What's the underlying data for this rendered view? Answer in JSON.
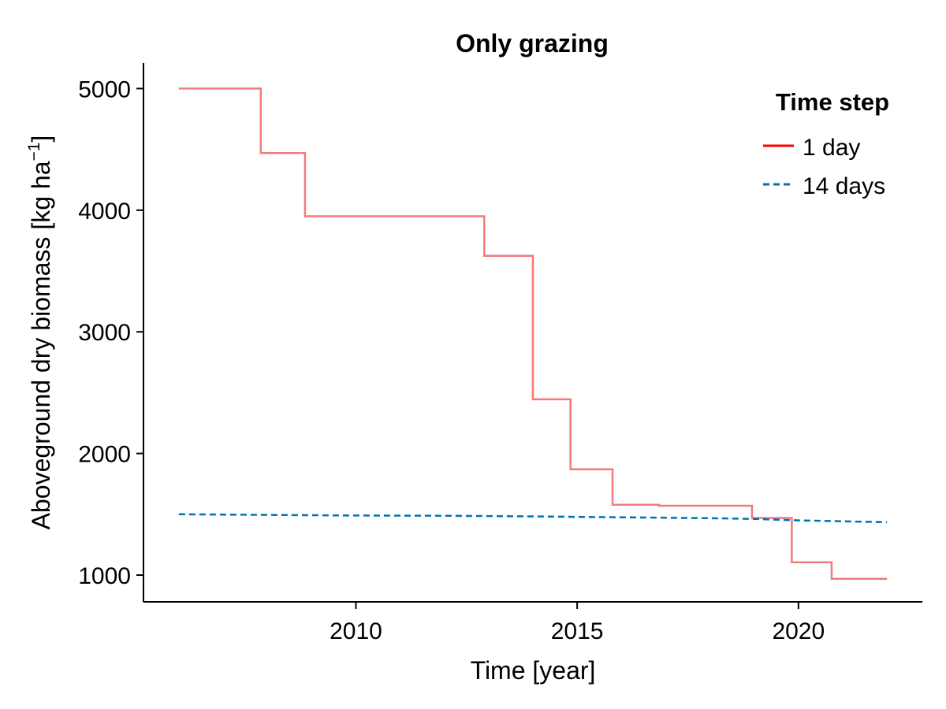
{
  "chart_data": {
    "type": "line",
    "title": "Only grazing",
    "xlabel": "Time [year]",
    "ylabel_main": "Aboveground dry biomass [kg ha",
    "ylabel_sup": "−1",
    "ylabel_end": "]",
    "xlim": [
      2005.2,
      2022.8
    ],
    "ylim": [
      780,
      5210
    ],
    "x_ticks": [
      2010,
      2015,
      2020
    ],
    "x_tick_labels": [
      "2010",
      "2015",
      "2020"
    ],
    "y_ticks": [
      1000,
      2000,
      3000,
      4000,
      5000
    ],
    "y_tick_labels": [
      "1000",
      "2000",
      "3000",
      "4000",
      "5000"
    ],
    "grid": false,
    "legend": {
      "title": "Time step",
      "placement": "top-right",
      "entries": [
        "1 day",
        "14 days"
      ]
    },
    "series": [
      {
        "name": "1 day",
        "color": "#f47a7a",
        "legend_color": "#ff0000",
        "style": "solid",
        "x": [
          2006.0,
          2007.85,
          2007.85,
          2008.85,
          2008.85,
          2012.9,
          2012.9,
          2014.0,
          2014.0,
          2014.85,
          2014.85,
          2015.8,
          2015.8,
          2016.85,
          2016.85,
          2018.95,
          2018.95,
          2019.85,
          2019.85,
          2020.75,
          2020.75,
          2022.0
        ],
        "y": [
          5000,
          5000,
          4470,
          4470,
          3950,
          3950,
          3625,
          3625,
          2445,
          2445,
          1870,
          1870,
          1578,
          1578,
          1570,
          1570,
          1470,
          1470,
          1105,
          1105,
          970,
          970
        ]
      },
      {
        "name": "14 days",
        "color": "#0072b2",
        "style": "dashed",
        "x": [
          2006.0,
          2008.0,
          2010.0,
          2012.0,
          2014.0,
          2016.0,
          2018.0,
          2019.0,
          2020.0,
          2022.0
        ],
        "y": [
          1500,
          1495,
          1490,
          1488,
          1483,
          1475,
          1468,
          1462,
          1450,
          1435
        ]
      }
    ]
  }
}
